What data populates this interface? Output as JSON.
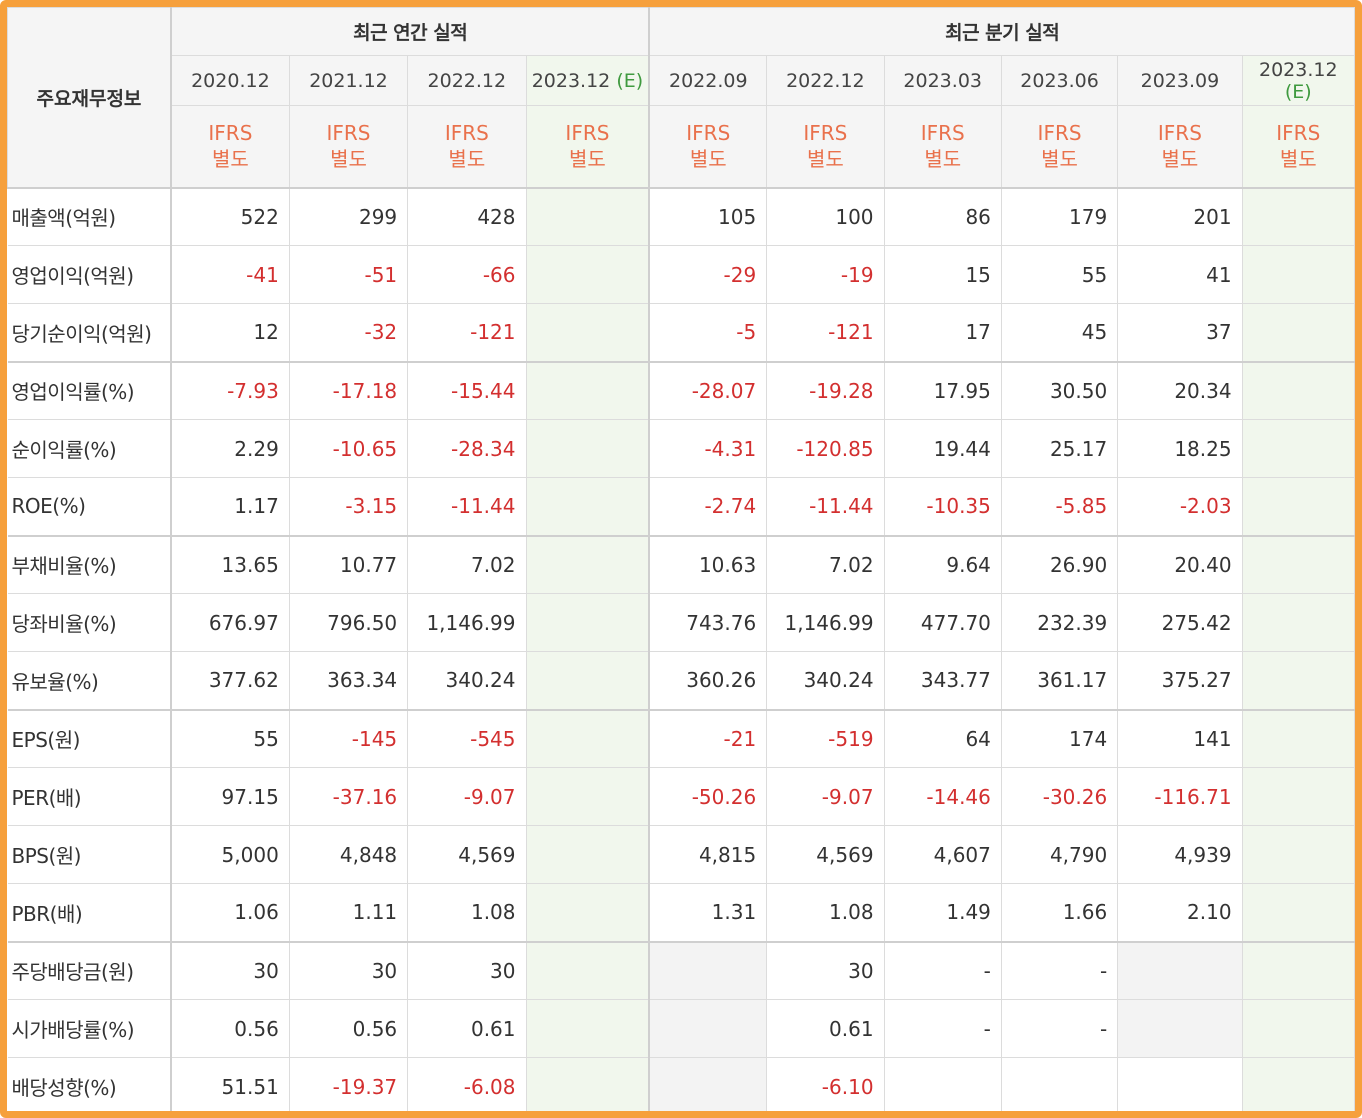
{
  "table": {
    "row_header": "주요재무정보",
    "group_annual": "최근 연간 실적",
    "group_quarter": "최근 분기 실적",
    "periods": [
      {
        "label": "2020.12",
        "est": ""
      },
      {
        "label": "2021.12",
        "est": ""
      },
      {
        "label": "2022.12",
        "est": ""
      },
      {
        "label": "2023.12",
        "est": "(E)"
      },
      {
        "label": "2022.09",
        "est": ""
      },
      {
        "label": "2022.12",
        "est": ""
      },
      {
        "label": "2023.03",
        "est": ""
      },
      {
        "label": "2023.06",
        "est": ""
      },
      {
        "label": "2023.09",
        "est": ""
      },
      {
        "label": "2023.12",
        "est": "(E)"
      }
    ],
    "basis_line1": "IFRS",
    "basis_line2": "별도",
    "rows": [
      {
        "label": "매출액(억원)",
        "values": [
          "522",
          "299",
          "428",
          "",
          "105",
          "100",
          "86",
          "179",
          "201",
          ""
        ]
      },
      {
        "label": "영업이익(억원)",
        "values": [
          "-41",
          "-51",
          "-66",
          "",
          "-29",
          "-19",
          "15",
          "55",
          "41",
          ""
        ]
      },
      {
        "label": "당기순이익(억원)",
        "values": [
          "12",
          "-32",
          "-121",
          "",
          "-5",
          "-121",
          "17",
          "45",
          "37",
          ""
        ]
      },
      {
        "label": "영업이익률(%)",
        "values": [
          "-7.93",
          "-17.18",
          "-15.44",
          "",
          "-28.07",
          "-19.28",
          "17.95",
          "30.50",
          "20.34",
          ""
        ]
      },
      {
        "label": "순이익률(%)",
        "values": [
          "2.29",
          "-10.65",
          "-28.34",
          "",
          "-4.31",
          "-120.85",
          "19.44",
          "25.17",
          "18.25",
          ""
        ]
      },
      {
        "label": "ROE(%)",
        "values": [
          "1.17",
          "-3.15",
          "-11.44",
          "",
          "-2.74",
          "-11.44",
          "-10.35",
          "-5.85",
          "-2.03",
          ""
        ]
      },
      {
        "label": "부채비율(%)",
        "values": [
          "13.65",
          "10.77",
          "7.02",
          "",
          "10.63",
          "7.02",
          "9.64",
          "26.90",
          "20.40",
          ""
        ]
      },
      {
        "label": "당좌비율(%)",
        "values": [
          "676.97",
          "796.50",
          "1,146.99",
          "",
          "743.76",
          "1,146.99",
          "477.70",
          "232.39",
          "275.42",
          ""
        ]
      },
      {
        "label": "유보율(%)",
        "values": [
          "377.62",
          "363.34",
          "340.24",
          "",
          "360.26",
          "340.24",
          "343.77",
          "361.17",
          "375.27",
          ""
        ]
      },
      {
        "label": "EPS(원)",
        "values": [
          "55",
          "-145",
          "-545",
          "",
          "-21",
          "-519",
          "64",
          "174",
          "141",
          ""
        ]
      },
      {
        "label": "PER(배)",
        "values": [
          "97.15",
          "-37.16",
          "-9.07",
          "",
          "-50.26",
          "-9.07",
          "-14.46",
          "-30.26",
          "-116.71",
          ""
        ]
      },
      {
        "label": "BPS(원)",
        "values": [
          "5,000",
          "4,848",
          "4,569",
          "",
          "4,815",
          "4,569",
          "4,607",
          "4,790",
          "4,939",
          ""
        ]
      },
      {
        "label": "PBR(배)",
        "values": [
          "1.06",
          "1.11",
          "1.08",
          "",
          "1.31",
          "1.08",
          "1.49",
          "1.66",
          "2.10",
          ""
        ]
      },
      {
        "label": "주당배당금(원)",
        "values": [
          "30",
          "30",
          "30",
          "",
          "",
          "30",
          "-",
          "-",
          "",
          ""
        ]
      },
      {
        "label": "시가배당률(%)",
        "values": [
          "0.56",
          "0.56",
          "0.61",
          "",
          "",
          "0.61",
          "-",
          "-",
          "",
          ""
        ]
      },
      {
        "label": "배당성향(%)",
        "values": [
          "51.51",
          "-19.37",
          "-6.08",
          "",
          "",
          "-6.10",
          "",
          "",
          "",
          ""
        ]
      }
    ]
  },
  "colors": {
    "frame": "#f6a03c",
    "negative": "#d32f2f",
    "ifrs_label": "#e9714c",
    "estimate_mark": "#3f9a3f",
    "estimate_column_bg": "#f1f7ed",
    "empty_cell_bg": "#f3f3f3"
  }
}
